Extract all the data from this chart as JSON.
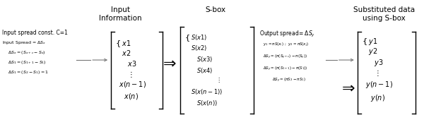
{
  "bg_color": "#ffffff",
  "text_color": "#000000",
  "gray_color": "#777777",
  "header_input_info": "Input\nInformation",
  "header_sbox": "S-box",
  "header_subst": "Substituted data\nusing S-box",
  "left_line1": "Input spread const. C=1",
  "left_line2": "Input Spread = $\\Delta S_x$",
  "left_line3": "$\\Delta S_x = (S_{x+c} - S_x)$",
  "left_line4": "$\\Delta S_1 = (S_{1+1} - S_1)$",
  "left_line5": "$\\Delta S_1 = (S_2 - S_1) = 1$",
  "x_vector": [
    "$x1$",
    "$x2$",
    "$x3$",
    "$\\vdots$",
    "$x(n-1)$",
    "$x(n)$"
  ],
  "x_curly": [
    true,
    true,
    false,
    false,
    false,
    false
  ],
  "sbox_vector": [
    "$S(x1)$",
    "$S(x2)$",
    "$S(x3)$",
    "$S(x4)$",
    "$\\vdots$",
    "$S(x(n-1))$",
    "$S(x(n))$"
  ],
  "sbox_curly": [
    true,
    true,
    false,
    false,
    false,
    false,
    false
  ],
  "mid_line1": "Output spread= $\\Delta S_y$",
  "mid_line2": "$y_1 = \\pi S(x_i)$ ;  $y_2 = \\pi S(x_j)$",
  "mid_line3": "$\\Delta S_y = (\\pi(S_{y+c}) - \\pi(S_y))$",
  "mid_line4": "$\\Delta S_y = (\\pi(S_{1+1}) - \\pi(S_1))$",
  "mid_line5": "$\\Delta S_y = (\\pi S_2 - \\pi S_1)$",
  "y_vector": [
    "$y1$",
    "$y2$",
    "$y3$",
    "$\\vdots$",
    "$y(n-1)$",
    "$y(n)$"
  ],
  "y_curly": [
    true,
    true,
    false,
    false,
    false,
    false
  ]
}
